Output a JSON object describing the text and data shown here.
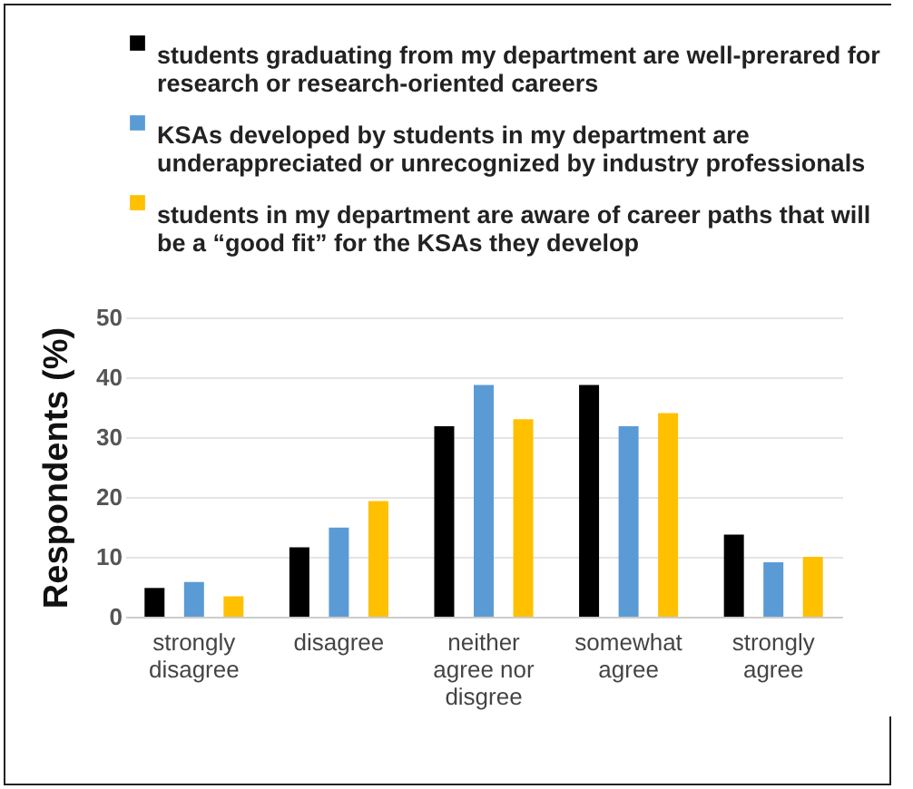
{
  "chart_data": {
    "type": "bar",
    "ylabel": "Respondents (%)",
    "categories": [
      "strongly disagree",
      "disagree",
      "neither agree nor disgree",
      "somewhat agree",
      "strongly agree"
    ],
    "series": [
      {
        "name": "students graduating from my department are well-prerared for research or research-oriented careers",
        "color": "#000000",
        "values": [
          4.8,
          11.6,
          31.8,
          38.7,
          13.7
        ]
      },
      {
        "name": "KSAs developed by students in my department are underappreciated or unrecognized by industry professionals",
        "color": "#5b9bd5",
        "values": [
          5.8,
          14.9,
          38.7,
          31.8,
          9.1
        ]
      },
      {
        "name": "students in my department are aware of career paths that will be a “good fit” for the KSAs they develop",
        "color": "#ffc000",
        "values": [
          3.4,
          19.3,
          33.0,
          34.0,
          10.0
        ]
      }
    ],
    "ylim": [
      0,
      50
    ],
    "yticks": [
      0,
      10,
      20,
      30,
      40,
      50
    ],
    "grid": "y",
    "legend": "top"
  }
}
